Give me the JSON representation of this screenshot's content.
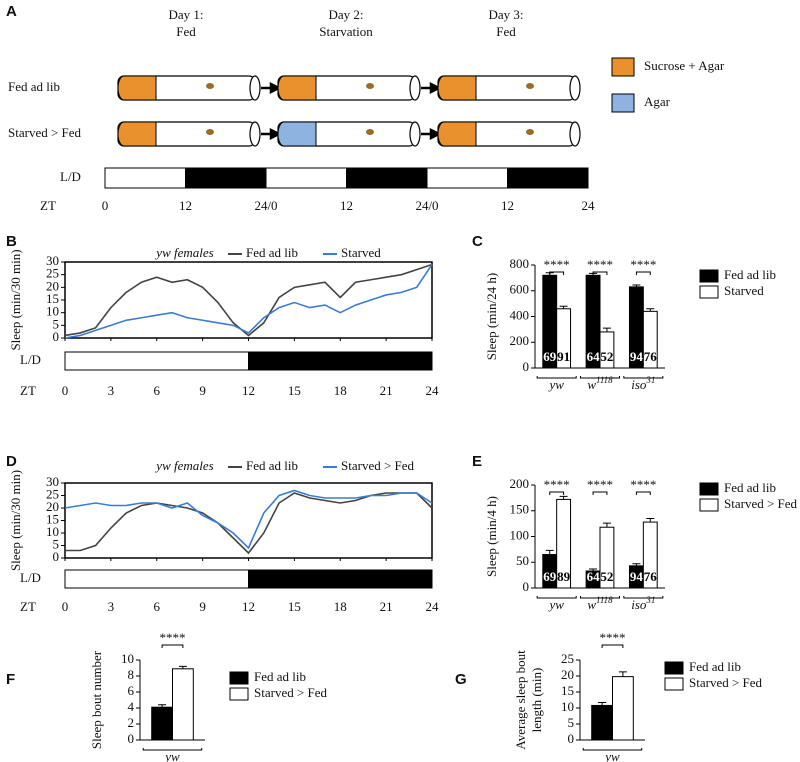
{
  "diagram": {
    "label": "A",
    "days": [
      [
        "Day 1:",
        "Fed"
      ],
      [
        "Day 2:",
        "Starvation"
      ],
      [
        "Day 3:",
        "Fed"
      ]
    ],
    "rows": [
      "Fed ad lib",
      "Starved > Fed"
    ],
    "legend": [
      {
        "name": "Sucrose + Agar",
        "color": "#e8912d"
      },
      {
        "name": "Agar",
        "color": "#8fb3e0"
      }
    ],
    "ld_label": "L/D",
    "zt_label": "ZT",
    "zt_labels": [
      "0",
      "12",
      "24/0",
      "12",
      "24/0",
      "12",
      "24"
    ]
  },
  "chart_data": [
    {
      "type": "line",
      "label": "B",
      "subtitle": "yw females",
      "ylabel": "Sleep (min/30 min)",
      "xlabel": "ZT",
      "ld_label": "L/D",
      "dark_start": 12,
      "x": [
        0,
        1,
        2,
        3,
        4,
        5,
        6,
        7,
        8,
        9,
        10,
        11,
        12,
        13,
        14,
        15,
        16,
        17,
        18,
        19,
        20,
        21,
        22,
        23,
        24
      ],
      "series": [
        {
          "name": "Fed ad lib",
          "color": "#444444",
          "values": [
            1,
            2,
            4,
            12,
            18,
            22,
            24,
            22,
            23,
            20,
            14,
            6,
            1,
            6,
            16,
            20,
            21,
            22,
            16,
            22,
            23,
            24,
            25,
            27,
            29
          ]
        },
        {
          "name": "Starved",
          "color": "#3a7bd5",
          "values": [
            0,
            1,
            3,
            5,
            7,
            8,
            9,
            10,
            8,
            7,
            6,
            5,
            2,
            8,
            12,
            14,
            12,
            13,
            10,
            13,
            15,
            17,
            18,
            20,
            29
          ]
        }
      ],
      "xlim": [
        0,
        24
      ],
      "xticks": [
        0,
        3,
        6,
        9,
        12,
        15,
        18,
        21,
        24
      ],
      "ylim": [
        0,
        30
      ],
      "yticks": [
        0,
        5,
        10,
        15,
        20,
        25,
        30
      ]
    },
    {
      "type": "bar",
      "label": "C",
      "ylabel": "Sleep (min/24 h)",
      "categories": [
        {
          "text": "yw"
        },
        {
          "text": "w",
          "sup": "1118"
        },
        {
          "text": "iso",
          "sup": "31"
        }
      ],
      "significance": [
        "****",
        "****",
        "****"
      ],
      "series": [
        {
          "name": "Fed ad lib",
          "color": "#000000",
          "values": [
            720,
            720,
            630
          ],
          "errors": [
            20,
            15,
            15
          ],
          "n": [
            69,
            64,
            94
          ]
        },
        {
          "name": "Starved",
          "color": "#ffffff",
          "values": [
            460,
            280,
            440
          ],
          "errors": [
            20,
            30,
            20
          ],
          "n": [
            91,
            52,
            76
          ]
        }
      ],
      "ylim": [
        0,
        800
      ],
      "yticks": [
        0,
        200,
        400,
        600,
        800
      ]
    },
    {
      "type": "line",
      "label": "D",
      "subtitle": "yw females",
      "ylabel": "Sleep (min/30 min)",
      "xlabel": "ZT",
      "ld_label": "L/D",
      "dark_start": 12,
      "x": [
        0,
        1,
        2,
        3,
        4,
        5,
        6,
        7,
        8,
        9,
        10,
        11,
        12,
        13,
        14,
        15,
        16,
        17,
        18,
        19,
        20,
        21,
        22,
        23,
        24
      ],
      "series": [
        {
          "name": "Fed ad lib",
          "color": "#444444",
          "values": [
            3,
            3,
            5,
            12,
            18,
            21,
            22,
            21,
            20,
            18,
            14,
            8,
            2,
            10,
            22,
            26,
            24,
            23,
            22,
            23,
            25,
            26,
            26,
            26,
            20
          ]
        },
        {
          "name": "Starved > Fed",
          "color": "#3a7bd5",
          "values": [
            20,
            21,
            22,
            21,
            21,
            22,
            22,
            20,
            22,
            17,
            14,
            10,
            4,
            18,
            25,
            27,
            25,
            24,
            24,
            24,
            25,
            25,
            26,
            26,
            22
          ]
        }
      ],
      "xlim": [
        0,
        24
      ],
      "xticks": [
        0,
        3,
        6,
        9,
        12,
        15,
        18,
        21,
        24
      ],
      "ylim": [
        0,
        30
      ],
      "yticks": [
        0,
        5,
        10,
        15,
        20,
        25,
        30
      ]
    },
    {
      "type": "bar",
      "label": "E",
      "ylabel": "Sleep (min/4 h)",
      "categories": [
        {
          "text": "yw"
        },
        {
          "text": "w",
          "sup": "1118"
        },
        {
          "text": "iso",
          "sup": "31"
        }
      ],
      "significance": [
        "****",
        "****",
        "****"
      ],
      "series": [
        {
          "name": "Fed ad lib",
          "color": "#000000",
          "values": [
            65,
            33,
            43
          ],
          "errors": [
            8,
            4,
            4
          ],
          "n": [
            69,
            64,
            94
          ]
        },
        {
          "name": "Starved > Fed",
          "color": "#ffffff",
          "values": [
            172,
            118,
            128
          ],
          "errors": [
            6,
            8,
            7
          ],
          "n": [
            89,
            52,
            76
          ]
        }
      ],
      "ylim": [
        0,
        200
      ],
      "yticks": [
        0,
        50,
        100,
        150,
        200
      ]
    },
    {
      "type": "bar",
      "label": "F",
      "ylabel": "Sleep bout number",
      "categories": [
        {
          "text": "yw"
        }
      ],
      "significance": [
        "****"
      ],
      "series": [
        {
          "name": "Fed ad lib",
          "color": "#000000",
          "values": [
            4.1
          ],
          "errors": [
            0.3
          ]
        },
        {
          "name": "Starved > Fed",
          "color": "#ffffff",
          "values": [
            8.9
          ],
          "errors": [
            0.3
          ]
        }
      ],
      "ylim": [
        0,
        10
      ],
      "yticks": [
        0,
        2,
        4,
        6,
        8,
        10
      ]
    },
    {
      "type": "bar",
      "label": "G",
      "ylabel": [
        "Average sleep bout",
        "length (min)"
      ],
      "categories": [
        {
          "text": "yw"
        }
      ],
      "significance": [
        "****"
      ],
      "series": [
        {
          "name": "Fed ad lib",
          "color": "#000000",
          "values": [
            10.8
          ],
          "errors": [
            0.9
          ]
        },
        {
          "name": "Starved > Fed",
          "color": "#ffffff",
          "values": [
            19.8
          ],
          "errors": [
            1.5
          ]
        }
      ],
      "ylim": [
        0,
        25
      ],
      "yticks": [
        0,
        5,
        10,
        15,
        20,
        25
      ]
    }
  ]
}
